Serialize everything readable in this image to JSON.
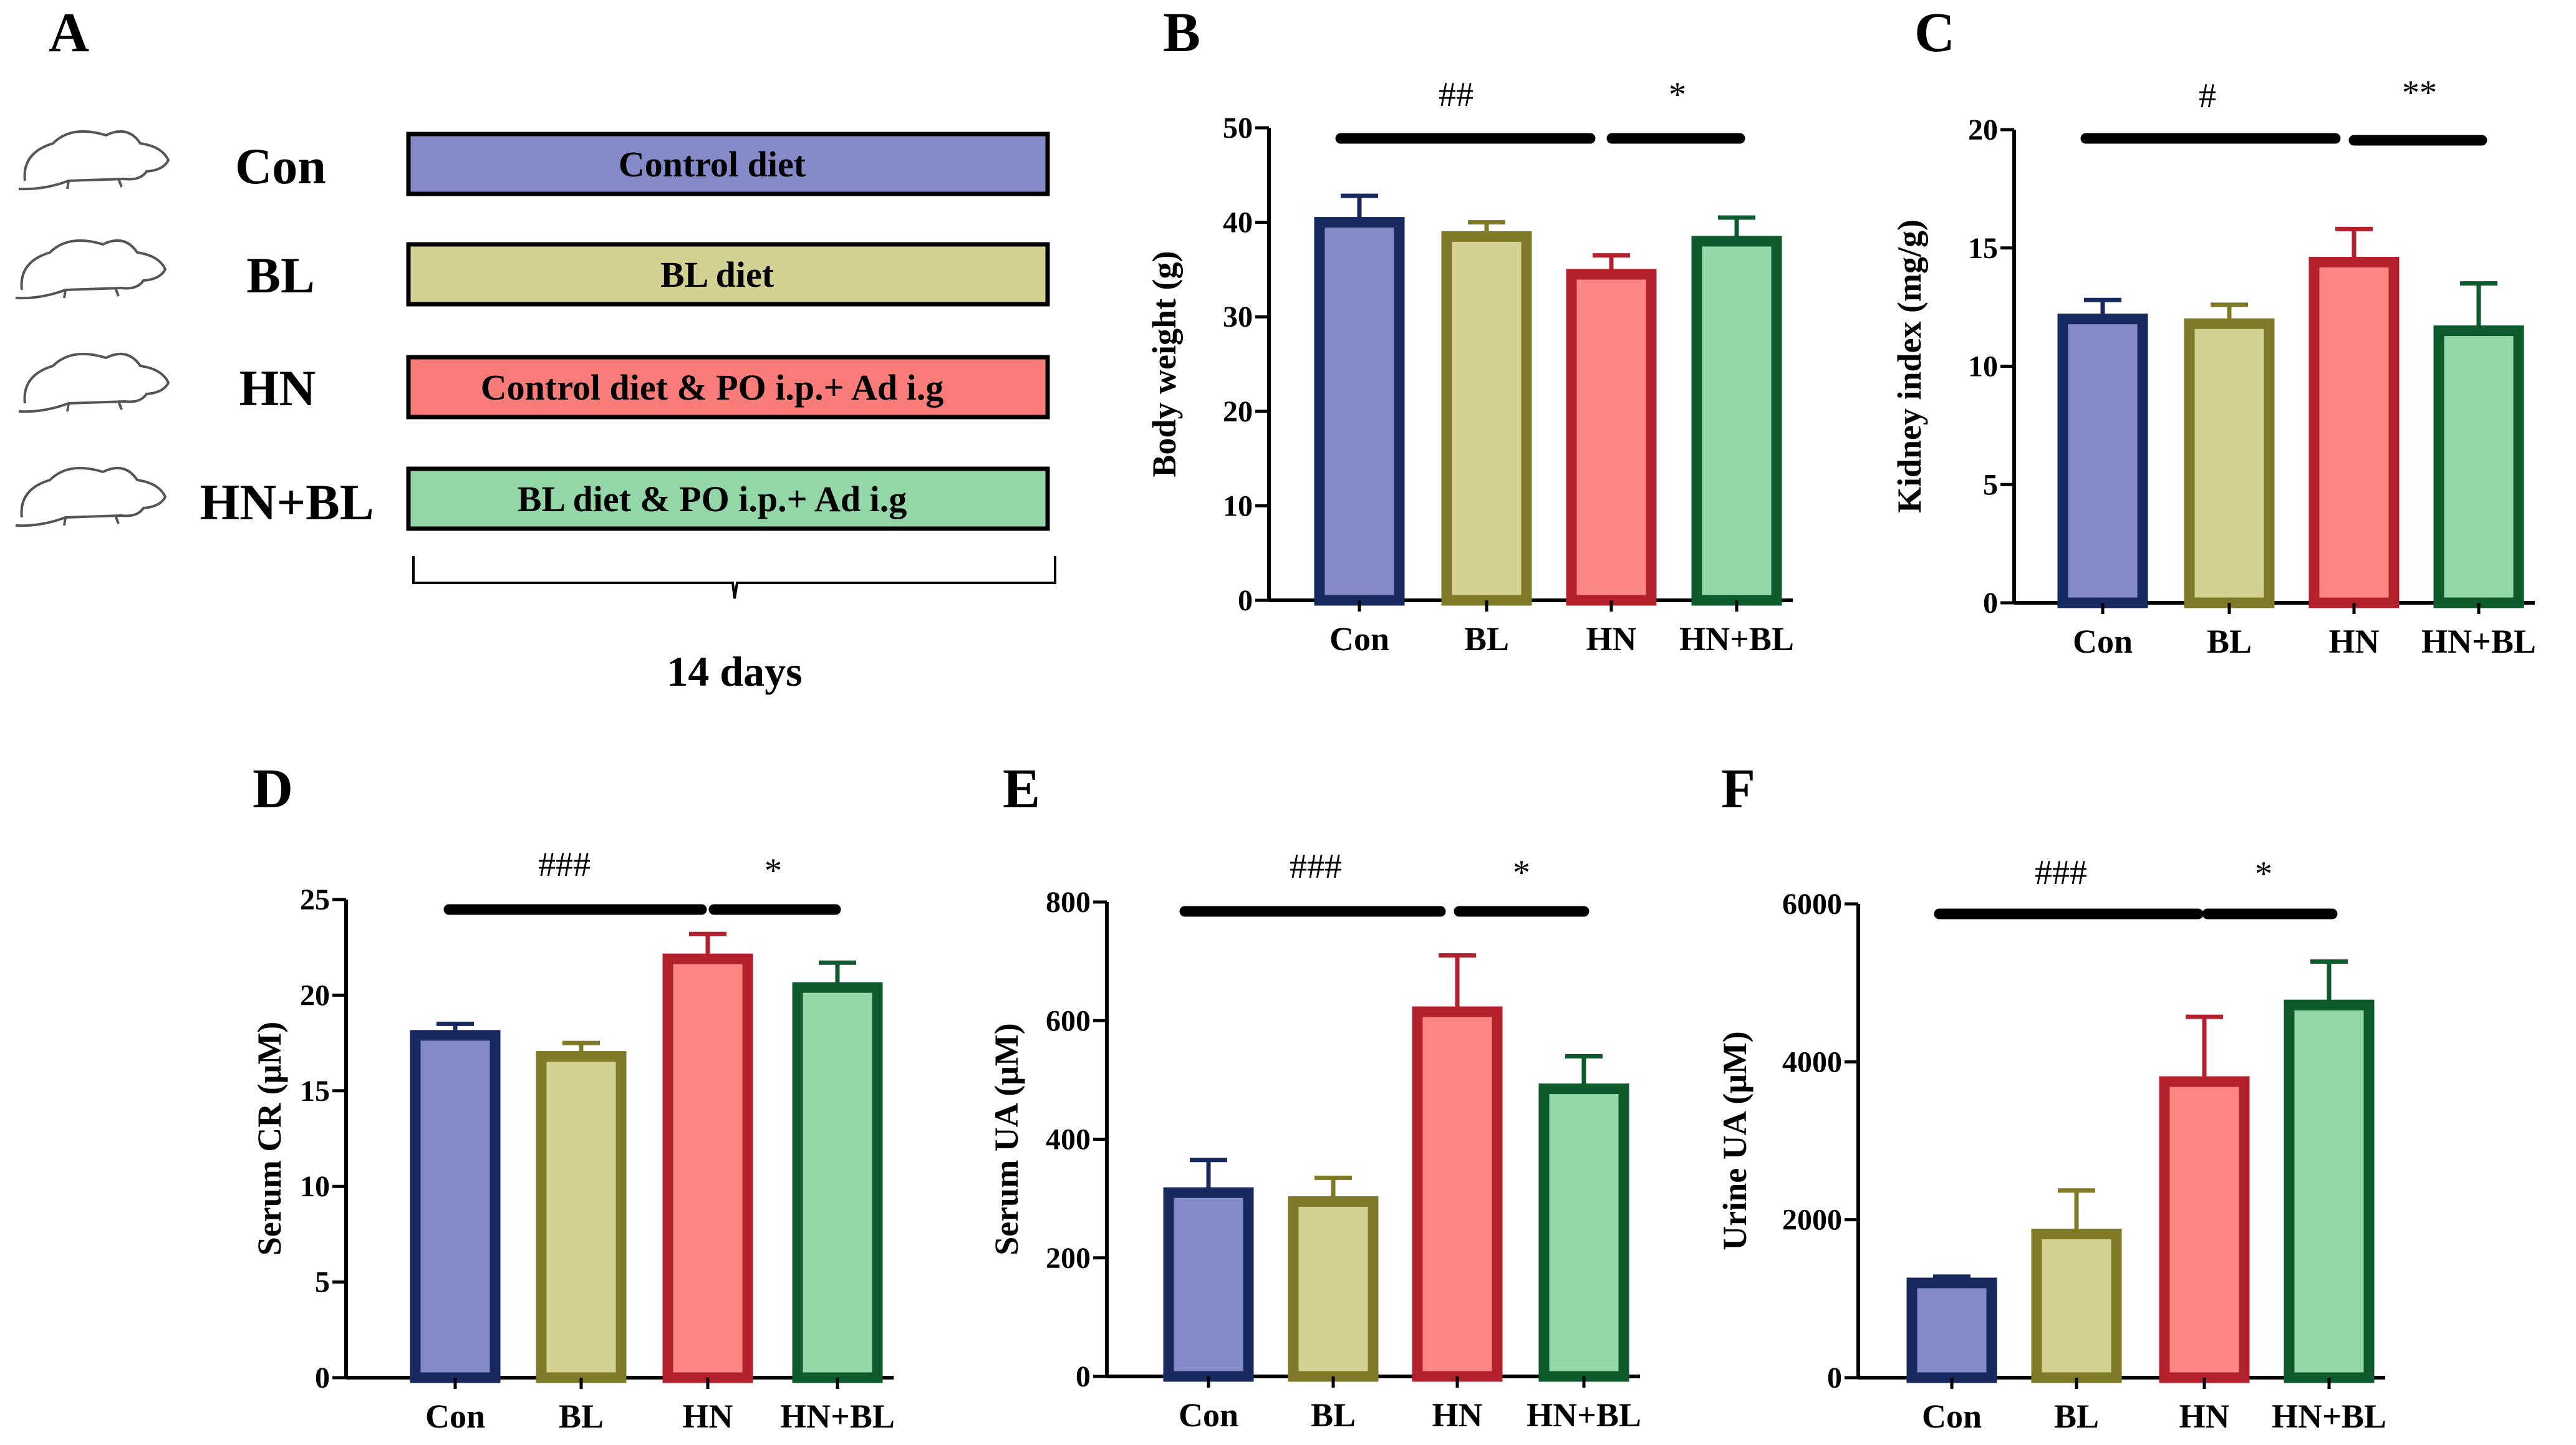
{
  "design": {
    "label": "A",
    "groups": [
      {
        "name": "Con",
        "treatment": "Control diet",
        "fill": "#8489c8"
      },
      {
        "name": "BL",
        "treatment": "BL diet",
        "fill": "#d3d191"
      },
      {
        "name": "HN",
        "treatment": "Control diet & PO i.p.+ Ad i.g",
        "fill": "#fa7c79"
      },
      {
        "name": "HN+BL",
        "treatment": "BL diet & PO i.p.+ Ad i.g",
        "fill": "#93d6a8"
      }
    ],
    "duration": "14 days",
    "icon": "mouse-icon"
  },
  "colors": {
    "fills": [
      "#8489c8",
      "#d3d191",
      "#fb8684",
      "#93d6a8"
    ],
    "edges": [
      "#17295e",
      "#7e7a27",
      "#b5202d",
      "#0d5a2c"
    ]
  },
  "chart_data": [
    {
      "label": "B",
      "type": "bar",
      "categories": [
        "Con",
        "BL",
        "HN",
        "HN+BL"
      ],
      "values": [
        40,
        38.5,
        34.5,
        38
      ],
      "errors": [
        2.8,
        1.5,
        2.0,
        2.5
      ],
      "ylabel": "Body weight (g)",
      "ylim": [
        0,
        50
      ],
      "yticks": [
        0,
        10,
        20,
        30,
        40,
        50
      ],
      "significance": [
        {
          "from": 0,
          "to": 2,
          "label": "##"
        },
        {
          "from": 2,
          "to": 3,
          "label": "*"
        }
      ]
    },
    {
      "label": "C",
      "type": "bar",
      "categories": [
        "Con",
        "BL",
        "HN",
        "HN+BL"
      ],
      "values": [
        12,
        11.8,
        14.4,
        11.5
      ],
      "errors": [
        0.8,
        0.8,
        1.4,
        2.0
      ],
      "ylabel": "Kidney index (mg/g)",
      "ylim": [
        0,
        20
      ],
      "yticks": [
        0,
        5,
        10,
        15,
        20
      ],
      "significance": [
        {
          "from": 0,
          "to": 2,
          "label": "#"
        },
        {
          "from": 2,
          "to": 3,
          "label": "**"
        }
      ]
    },
    {
      "label": "D",
      "type": "bar",
      "categories": [
        "Con",
        "BL",
        "HN",
        "HN+BL"
      ],
      "values": [
        17.9,
        16.8,
        21.9,
        20.4
      ],
      "errors": [
        0.6,
        0.7,
        1.3,
        1.3
      ],
      "ylabel": "Serum CR (μM)",
      "ylim": [
        0,
        25
      ],
      "yticks": [
        0,
        5,
        10,
        15,
        20,
        25
      ],
      "significance": [
        {
          "from": 0,
          "to": 2,
          "label": "###"
        },
        {
          "from": 2,
          "to": 3,
          "label": "*"
        }
      ]
    },
    {
      "label": "E",
      "type": "bar",
      "categories": [
        "Con",
        "BL",
        "HN",
        "HN+BL"
      ],
      "values": [
        310,
        295,
        615,
        485
      ],
      "errors": [
        55,
        40,
        95,
        55
      ],
      "ylabel": "Serum UA (μM)",
      "ylim": [
        0,
        800
      ],
      "yticks": [
        0,
        200,
        400,
        600,
        800
      ],
      "significance": [
        {
          "from": 0,
          "to": 2,
          "label": "###"
        },
        {
          "from": 2,
          "to": 3,
          "label": "*"
        }
      ]
    },
    {
      "label": "F",
      "type": "bar",
      "categories": [
        "Con",
        "BL",
        "HN",
        "HN+BL"
      ],
      "values": [
        1200,
        1820,
        3750,
        4720
      ],
      "errors": [
        80,
        550,
        820,
        550
      ],
      "ylabel": "Urine UA (μM)",
      "ylim": [
        0,
        6000
      ],
      "yticks": [
        0,
        2000,
        4000,
        6000
      ],
      "significance": [
        {
          "from": 0,
          "to": 2,
          "label": "###"
        },
        {
          "from": 2,
          "to": 3,
          "label": "*"
        }
      ]
    }
  ]
}
